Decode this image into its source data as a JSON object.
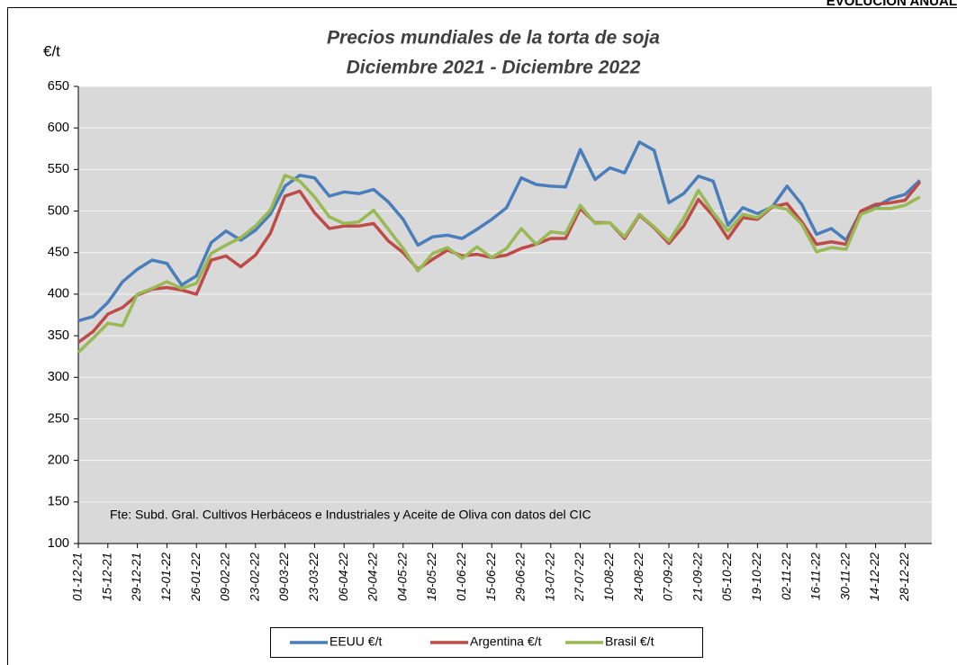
{
  "header": "EVOLUCIÓN ANUAL",
  "chart_data": {
    "type": "line",
    "title": [
      "Precios mundiales de la torta de soja",
      "Diciembre 2021 - Diciembre 2022"
    ],
    "y_label": "€/t",
    "annotation": "Fte: Subd. Gral. Cultivos Herbáceos e Industriales y Aceite de Oliva con datos del CIC",
    "categories": [
      "01-12-21",
      null,
      "15-12-21",
      null,
      "29-12-21",
      null,
      "12-01-22",
      null,
      "26-01-22",
      null,
      "09-02-22",
      null,
      "23-02-22",
      null,
      "09-03-22",
      null,
      "23-03-22",
      null,
      "06-04-22",
      null,
      "20-04-22",
      null,
      "04-05-22",
      null,
      "18-05-22",
      null,
      "01-06-22",
      null,
      "15-06-22",
      null,
      "29-06-22",
      null,
      "13-07-22",
      null,
      "27-07-22",
      null,
      "10-08-22",
      null,
      "24-08-22",
      null,
      "07-09-22",
      null,
      "21-09-22",
      null,
      "05-10-22",
      null,
      "19-10-22",
      null,
      "02-11-22",
      null,
      "16-11-22",
      null,
      "30-11-22",
      null,
      "14-12-22",
      null,
      "28-12-22",
      null
    ],
    "series": [
      {
        "name": "EEUU €/t",
        "color": "#4a7ebb",
        "values": [
          368,
          373,
          390,
          415,
          430,
          441,
          437,
          411,
          422,
          462,
          476,
          465,
          477,
          496,
          530,
          543,
          540,
          518,
          523,
          521,
          526,
          511,
          490,
          459,
          469,
          471,
          467,
          478,
          490,
          504,
          540,
          532,
          530,
          529,
          574,
          538,
          552,
          546,
          583,
          573,
          510,
          521,
          542,
          536,
          483,
          504,
          497,
          505,
          530,
          508,
          472,
          479,
          465,
          499,
          505,
          515,
          520,
          537
        ]
      },
      {
        "name": "Argentina €/t",
        "color": "#be4b48",
        "values": [
          342,
          355,
          376,
          384,
          399,
          406,
          408,
          405,
          400,
          441,
          446,
          433,
          447,
          473,
          518,
          524,
          498,
          479,
          482,
          482,
          485,
          464,
          450,
          430,
          442,
          453,
          446,
          448,
          444,
          447,
          455,
          460,
          467,
          467,
          503,
          486,
          486,
          467,
          495,
          480,
          461,
          482,
          514,
          494,
          467,
          492,
          490,
          505,
          509,
          487,
          460,
          463,
          460,
          500,
          508,
          510,
          513,
          535
        ]
      },
      {
        "name": "Brasil €/t",
        "color": "#98b954",
        "values": [
          330,
          347,
          365,
          362,
          400,
          407,
          415,
          407,
          413,
          449,
          459,
          468,
          482,
          501,
          543,
          536,
          517,
          493,
          485,
          487,
          501,
          478,
          455,
          428,
          449,
          456,
          443,
          457,
          444,
          455,
          479,
          460,
          475,
          473,
          507,
          485,
          486,
          469,
          496,
          481,
          464,
          491,
          525,
          498,
          476,
          496,
          492,
          506,
          502,
          484,
          451,
          456,
          454,
          496,
          503,
          503,
          507,
          517
        ]
      }
    ],
    "ylim": [
      100,
      650
    ],
    "yticks": [
      100,
      150,
      200,
      250,
      300,
      350,
      400,
      450,
      500,
      550,
      600,
      650
    ],
    "grid": true,
    "legend": "bottom"
  }
}
